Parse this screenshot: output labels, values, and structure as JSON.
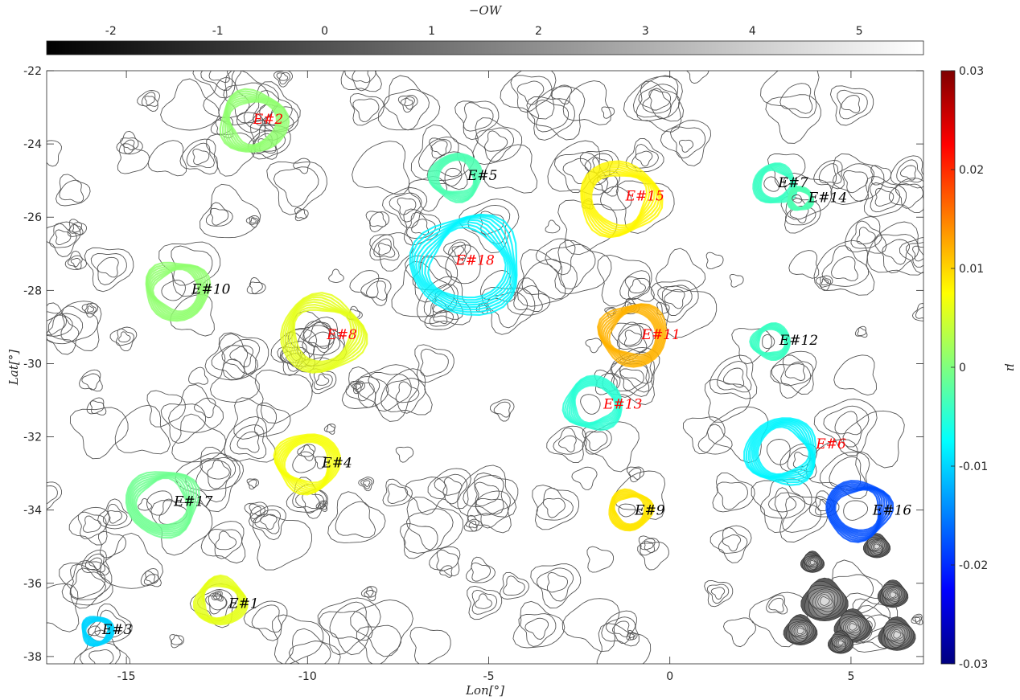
{
  "chart_data": {
    "type": "contour",
    "xlabel": "Lon[°]",
    "ylabel": "Lat[°]",
    "xlim": [
      -17.2,
      7
    ],
    "ylim": [
      -38.2,
      -22
    ],
    "xticks": [
      -15,
      -10,
      -5,
      0,
      5
    ],
    "yticks": [
      -22,
      -24,
      -26,
      -28,
      -30,
      -32,
      -34,
      -36,
      -38
    ],
    "colorbar_top": {
      "label": "−OW",
      "range": [
        -2.6,
        5.6
      ],
      "ticks": [
        -2,
        -1,
        0,
        1,
        2,
        3,
        4,
        5
      ],
      "colormap": "gray"
    },
    "colorbar_right": {
      "label": "μ",
      "range": [
        -0.03,
        0.03
      ],
      "ticks": [
        0.03,
        0.02,
        0.01,
        0,
        -0.01,
        -0.02,
        -0.03
      ],
      "tick_labels": [
        "0.03",
        "0.02",
        "0.01",
        "0",
        "-0.01",
        "-0.02",
        "-0.03"
      ],
      "colormap": "jet"
    },
    "eddies": [
      {
        "label": "E#1",
        "lon": -12.4,
        "lat": -36.5,
        "mu": 0.006,
        "label_color": "#000000"
      },
      {
        "label": "E#2",
        "lon": -11.5,
        "lat": -23.4,
        "mu": 0.001,
        "label_color": "#ff0000"
      },
      {
        "label": "E#3",
        "lon": -15.8,
        "lat": -37.3,
        "mu": -0.01,
        "label_color": "#000000"
      },
      {
        "label": "E#4",
        "lon": -10.0,
        "lat": -32.7,
        "mu": 0.007,
        "label_color": "#000000"
      },
      {
        "label": "E#5",
        "lon": -5.9,
        "lat": -24.9,
        "mu": -0.003,
        "label_color": "#000000"
      },
      {
        "label": "E#6",
        "lon": 3.1,
        "lat": -32.4,
        "mu": -0.008,
        "label_color": "#ff0000"
      },
      {
        "label": "E#7",
        "lon": 2.9,
        "lat": -25.1,
        "mu": -0.004,
        "label_color": "#000000"
      },
      {
        "label": "E#8",
        "lon": -9.6,
        "lat": -29.2,
        "mu": 0.006,
        "label_color": "#ff0000"
      },
      {
        "label": "E#9",
        "lon": -1.1,
        "lat": -34.0,
        "mu": 0.009,
        "label_color": "#000000"
      },
      {
        "label": "E#10",
        "lon": -13.6,
        "lat": -28.0,
        "mu": 0.001,
        "label_color": "#000000"
      },
      {
        "label": "E#11",
        "lon": -1.0,
        "lat": -29.2,
        "mu": 0.012,
        "label_color": "#ff0000"
      },
      {
        "label": "E#12",
        "lon": 2.8,
        "lat": -29.4,
        "mu": -0.004,
        "label_color": "#000000"
      },
      {
        "label": "E#13",
        "lon": -2.1,
        "lat": -31.1,
        "mu": -0.005,
        "label_color": "#ff0000"
      },
      {
        "label": "E#14",
        "lon": 3.6,
        "lat": -25.5,
        "mu": -0.003,
        "label_color": "#000000"
      },
      {
        "label": "E#15",
        "lon": -1.4,
        "lat": -25.5,
        "mu": 0.008,
        "label_color": "#ff0000"
      },
      {
        "label": "E#16",
        "lon": 5.2,
        "lat": -34.0,
        "mu": -0.018,
        "label_color": "#000000"
      },
      {
        "label": "E#17",
        "lon": -14.0,
        "lat": -33.8,
        "mu": -0.001,
        "label_color": "#000000"
      },
      {
        "label": "E#18",
        "lon": -5.6,
        "lat": -27.3,
        "mu": -0.008,
        "label_color": "#ff0000"
      }
    ]
  }
}
